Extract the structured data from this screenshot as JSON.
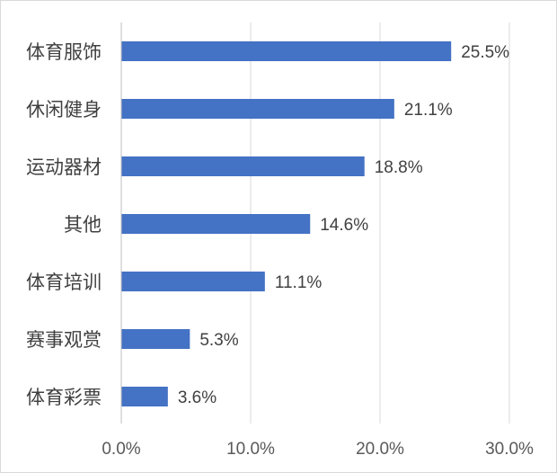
{
  "chart_data": {
    "type": "bar",
    "orientation": "horizontal",
    "categories": [
      "体育服饰",
      "休闲健身",
      "运动器材",
      "其他",
      "体育培训",
      "赛事观赏",
      "体育彩票"
    ],
    "values": [
      25.5,
      21.1,
      18.8,
      14.6,
      11.1,
      5.3,
      3.6
    ],
    "data_labels": [
      "25.5%",
      "21.1%",
      "18.8%",
      "14.6%",
      "11.1%",
      "5.3%",
      "3.6%"
    ],
    "x_ticks": [
      0,
      10,
      20,
      30
    ],
    "x_tick_labels": [
      "0.0%",
      "10.0%",
      "20.0%",
      "30.0%"
    ],
    "xlim": [
      0,
      30
    ],
    "bar_color": "#4472c4",
    "grid": true,
    "legend": "none"
  }
}
